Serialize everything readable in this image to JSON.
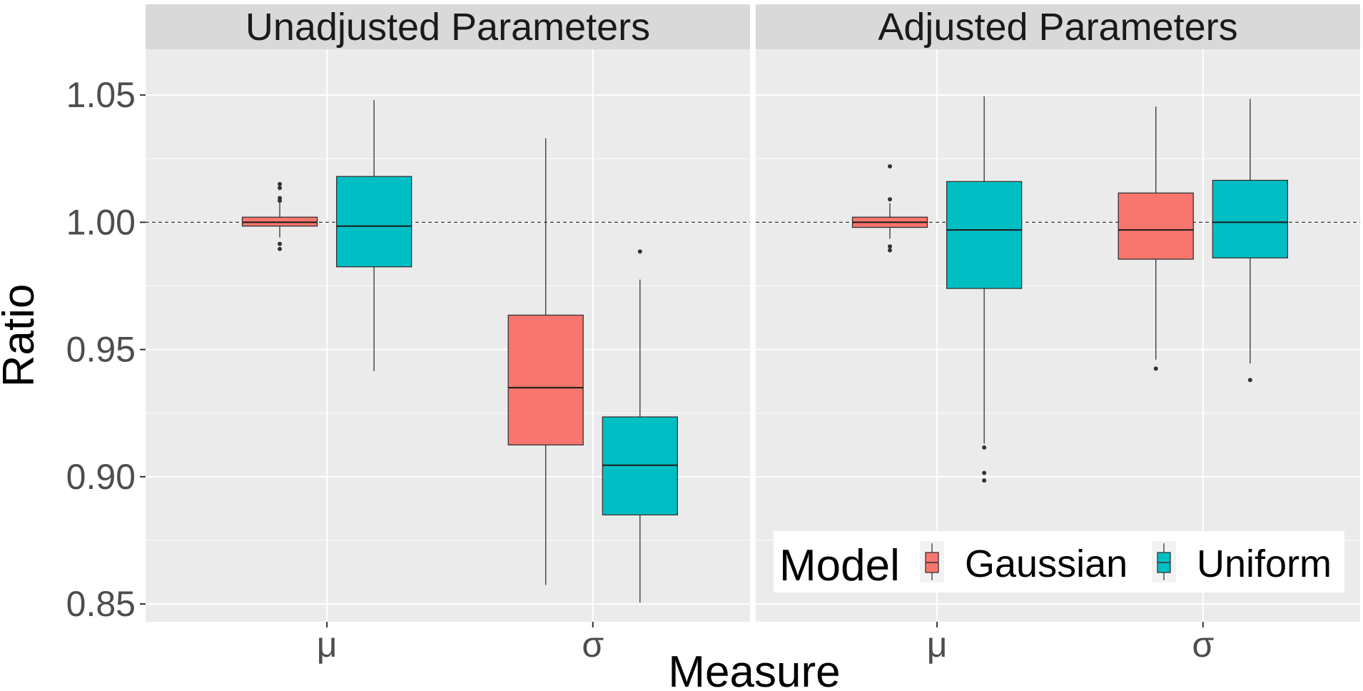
{
  "chart_data": {
    "type": "boxplot",
    "xlabel": "Measure",
    "ylabel": "Ratio",
    "ylim": [
      0.843,
      1.068
    ],
    "y_ticks": [
      "0.85",
      "0.90",
      "0.95",
      "1.00",
      "1.05"
    ],
    "y_tick_values": [
      0.85,
      0.9,
      0.95,
      1.0,
      1.05
    ],
    "reference_line": 1.0,
    "categories": [
      "μ",
      "σ"
    ],
    "legend": {
      "title": "Model",
      "entries": [
        {
          "name": "Gaussian",
          "color": "#F8766D"
        },
        {
          "name": "Uniform",
          "color": "#00BFC4"
        }
      ],
      "position": "bottom-right"
    },
    "panels": [
      {
        "title": "Unadjusted Parameters",
        "boxes": [
          {
            "category": "μ",
            "model": "Gaussian",
            "whisker_low": 0.994,
            "q1": 0.9985,
            "median": 1.0,
            "q3": 1.002,
            "whisker_high": 1.008,
            "outliers": [
              1.015,
              1.0135,
              1.0095,
              1.0085,
              0.9915,
              0.9895
            ]
          },
          {
            "category": "μ",
            "model": "Uniform",
            "whisker_low": 0.9415,
            "q1": 0.9825,
            "median": 0.9985,
            "q3": 1.018,
            "whisker_high": 1.048,
            "outliers": []
          },
          {
            "category": "σ",
            "model": "Gaussian",
            "whisker_low": 0.8575,
            "q1": 0.9125,
            "median": 0.935,
            "q3": 0.9635,
            "whisker_high": 1.033,
            "outliers": []
          },
          {
            "category": "σ",
            "model": "Uniform",
            "whisker_low": 0.8505,
            "q1": 0.885,
            "median": 0.9045,
            "q3": 0.9235,
            "whisker_high": 0.9775,
            "outliers": [
              0.9885
            ]
          }
        ]
      },
      {
        "title": "Adjusted Parameters",
        "boxes": [
          {
            "category": "μ",
            "model": "Gaussian",
            "whisker_low": 0.9935,
            "q1": 0.998,
            "median": 1.0,
            "q3": 1.002,
            "whisker_high": 1.0075,
            "outliers": [
              1.022,
              1.009,
              0.9905,
              0.989
            ]
          },
          {
            "category": "μ",
            "model": "Uniform",
            "whisker_low": 0.913,
            "q1": 0.974,
            "median": 0.997,
            "q3": 1.016,
            "whisker_high": 1.0495,
            "outliers": [
              0.9115,
              0.9015,
              0.8985
            ]
          },
          {
            "category": "σ",
            "model": "Gaussian",
            "whisker_low": 0.946,
            "q1": 0.9855,
            "median": 0.997,
            "q3": 1.0115,
            "whisker_high": 1.0455,
            "outliers": [
              0.9425
            ]
          },
          {
            "category": "σ",
            "model": "Uniform",
            "whisker_low": 0.9445,
            "q1": 0.986,
            "median": 1.0,
            "q3": 1.0165,
            "whisker_high": 1.0485,
            "outliers": [
              0.938
            ]
          }
        ]
      }
    ]
  }
}
